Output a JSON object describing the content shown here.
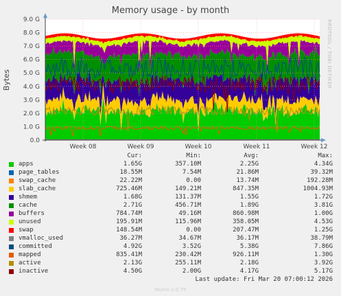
{
  "title": "Memory usage - by month",
  "ylabel": "Bytes",
  "side_text": "RRDTOOL / TOBI OETIKER",
  "legend_headers": {
    "cur": "Cur:",
    "min": "Min:",
    "avg": "Avg:",
    "max": "Max:"
  },
  "last_update": "Last update: Fri Mar 20 07:00:12 2026",
  "footer": "Munin 2.0.75",
  "chart_data": {
    "type": "area",
    "title": "Memory usage - by month",
    "ylabel": "Bytes",
    "y_ticks": [
      "0.0",
      "1.0 G",
      "2.0 G",
      "3.0 G",
      "4.0 G",
      "5.0 G",
      "6.0 G",
      "7.0 G",
      "8.0 G",
      "9.0 G"
    ],
    "ylim": [
      0,
      9
    ],
    "x_ticks": [
      "Week 08",
      "Week 09",
      "Week 10",
      "Week 11",
      "Week 12"
    ],
    "grid": true,
    "series": [
      {
        "name": "apps",
        "color": "#00cc00",
        "cur": "1.65G",
        "min": "357.10M",
        "avg": "2.25G",
        "max": "4.34G"
      },
      {
        "name": "page_tables",
        "color": "#0066b3",
        "cur": "18.55M",
        "min": "7.54M",
        "avg": "21.86M",
        "max": "39.32M"
      },
      {
        "name": "swap_cache",
        "color": "#ff8000",
        "cur": "22.22M",
        "min": "0.00",
        "avg": "13.74M",
        "max": "192.28M"
      },
      {
        "name": "slab_cache",
        "color": "#ffcc00",
        "cur": "725.46M",
        "min": "149.21M",
        "avg": "847.35M",
        "max": "1004.93M"
      },
      {
        "name": "shmem",
        "color": "#330099",
        "cur": "1.68G",
        "min": "131.37M",
        "avg": "1.55G",
        "max": "1.72G"
      },
      {
        "name": "cache",
        "color": "#008f00",
        "cur": "2.71G",
        "min": "456.71M",
        "avg": "1.89G",
        "max": "3.81G"
      },
      {
        "name": "buffers",
        "color": "#990099",
        "cur": "784.74M",
        "min": "49.16M",
        "avg": "860.98M",
        "max": "1.00G"
      },
      {
        "name": "unused",
        "color": "#ccff00",
        "cur": "195.91M",
        "min": "115.96M",
        "avg": "358.05M",
        "max": "4.53G"
      },
      {
        "name": "swap",
        "color": "#ff0000",
        "cur": "148.54M",
        "min": "0.00",
        "avg": "207.47M",
        "max": "1.25G"
      },
      {
        "name": "vmalloc_used",
        "color": "#808080",
        "cur": "36.27M",
        "min": "34.67M",
        "avg": "36.17M",
        "max": "38.79M"
      },
      {
        "name": "committed",
        "color": "#004d80",
        "cur": "4.92G",
        "min": "3.52G",
        "avg": "5.38G",
        "max": "7.86G"
      },
      {
        "name": "mapped",
        "color": "#e65c00",
        "cur": "835.41M",
        "min": "230.42M",
        "avg": "926.11M",
        "max": "1.30G"
      },
      {
        "name": "active",
        "color": "#b38f00",
        "cur": "2.13G",
        "min": "255.11M",
        "avg": "2.18G",
        "max": "3.92G"
      },
      {
        "name": "inactive",
        "color": "#8f0000",
        "cur": "4.50G",
        "min": "2.00G",
        "avg": "4.17G",
        "max": "5.17G"
      }
    ]
  }
}
